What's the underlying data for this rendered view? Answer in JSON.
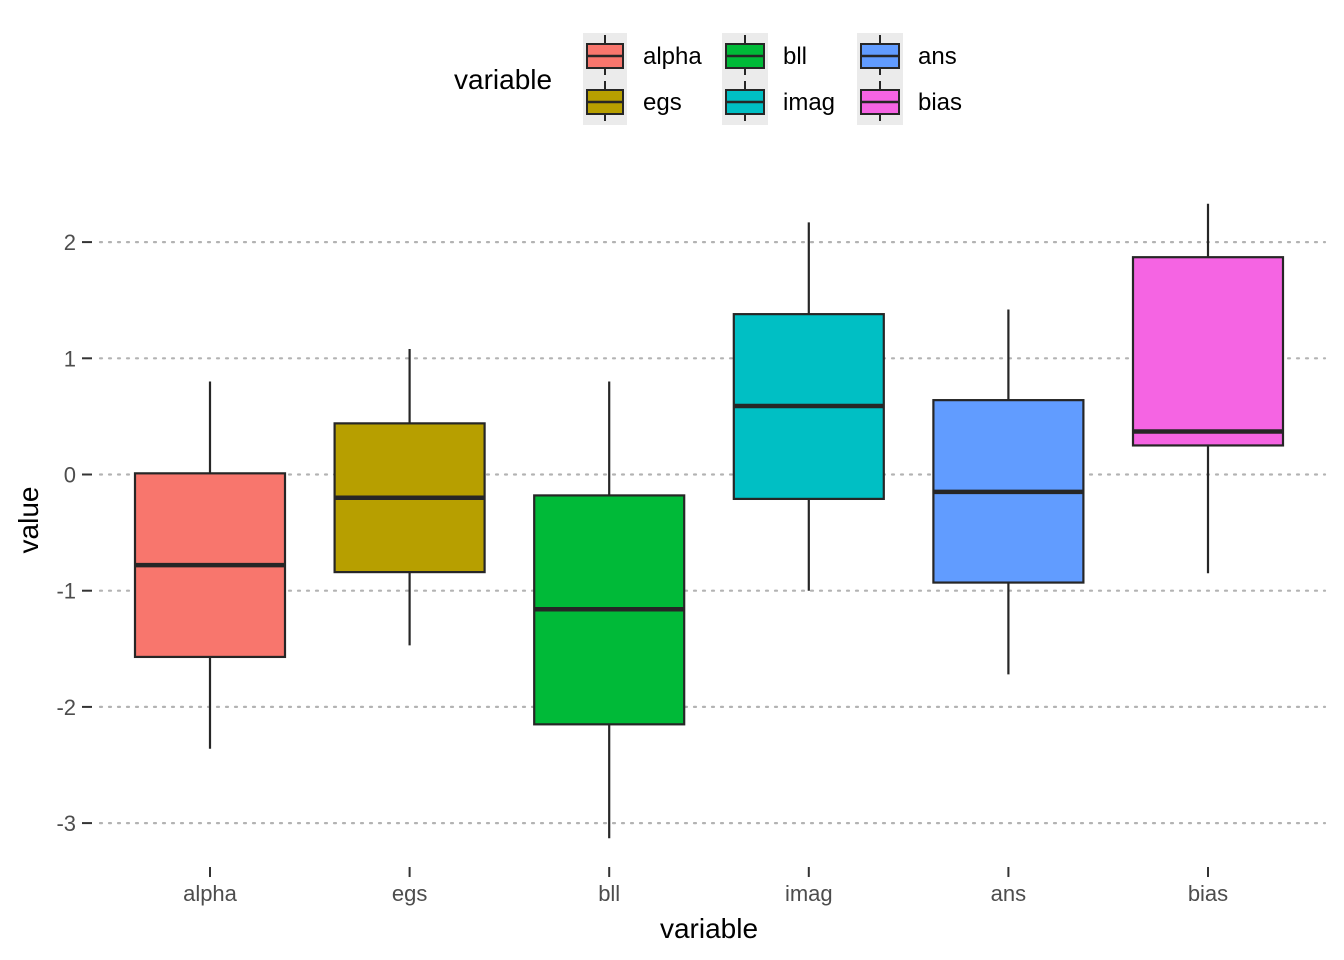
{
  "chart_data": {
    "type": "boxplot",
    "xlabel": "variable",
    "ylabel": "value",
    "ylim": [
      -3.3,
      2.5
    ],
    "yticks": [
      2,
      1,
      0,
      -1,
      -2,
      -3
    ],
    "ytick_labels": [
      "2",
      "1",
      "0",
      "-1",
      "-2",
      "-3"
    ],
    "grid": "horizontal dotted",
    "legend": {
      "title": "variable",
      "position": "top",
      "columns": 3
    },
    "categories": [
      "alpha",
      "egs",
      "bll",
      "imag",
      "ans",
      "bias"
    ],
    "series": [
      {
        "name": "alpha",
        "color": "#F8766D",
        "whisker_low": -2.36,
        "q1": -1.57,
        "median": -0.78,
        "q3": 0.01,
        "whisker_high": 0.8
      },
      {
        "name": "egs",
        "color": "#B79F00",
        "whisker_low": -1.47,
        "q1": -0.84,
        "median": -0.2,
        "q3": 0.44,
        "whisker_high": 1.08
      },
      {
        "name": "bll",
        "color": "#00BA38",
        "whisker_low": -3.13,
        "q1": -2.15,
        "median": -1.16,
        "q3": -0.18,
        "whisker_high": 0.8
      },
      {
        "name": "imag",
        "color": "#00BFC4",
        "whisker_low": -1.0,
        "q1": -0.21,
        "median": 0.59,
        "q3": 1.38,
        "whisker_high": 2.17
      },
      {
        "name": "ans",
        "color": "#619CFF",
        "whisker_low": -1.72,
        "q1": -0.93,
        "median": -0.15,
        "q3": 0.64,
        "whisker_high": 1.42
      },
      {
        "name": "bias",
        "color": "#F564E3",
        "whisker_low": -0.85,
        "q1": 0.25,
        "median": 0.37,
        "q3": 1.87,
        "whisker_high": 2.33
      }
    ]
  }
}
